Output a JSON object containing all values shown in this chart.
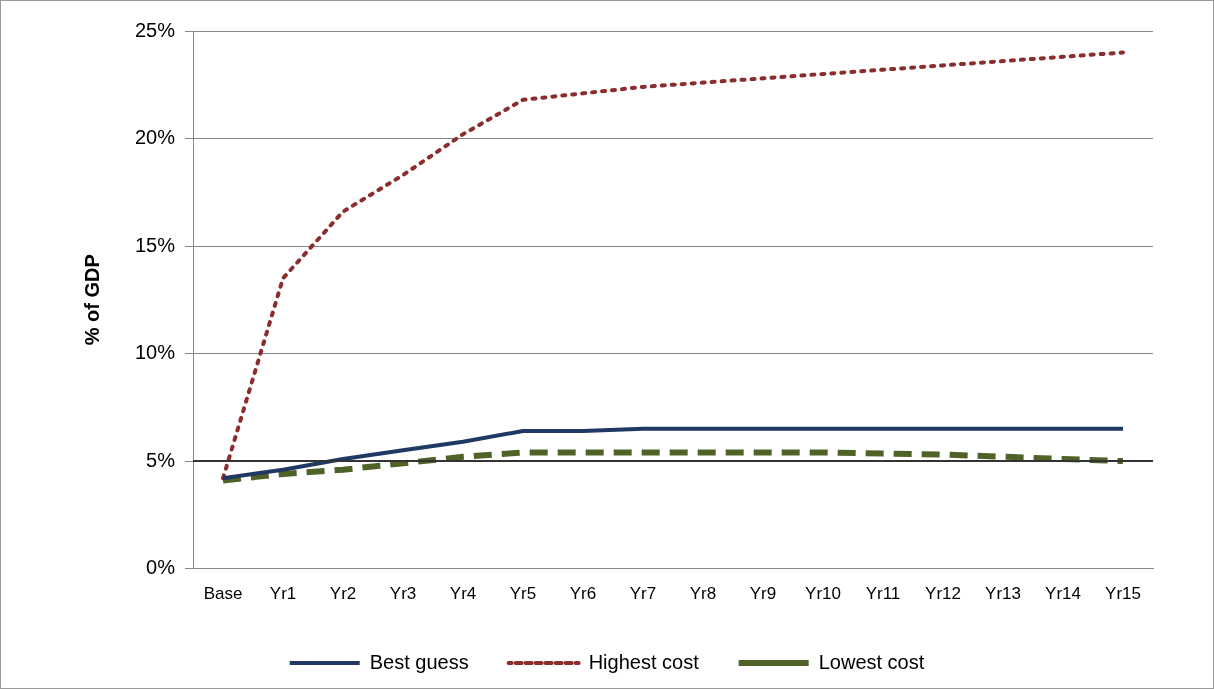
{
  "chart_data": {
    "type": "line",
    "ylabel": "% of GDP",
    "categories": [
      "Base",
      "Yr1",
      "Yr2",
      "Yr3",
      "Yr4",
      "Yr5",
      "Yr6",
      "Yr7",
      "Yr8",
      "Yr9",
      "Yr10",
      "Yr11",
      "Yr12",
      "Yr13",
      "Yr14",
      "Yr15"
    ],
    "series": [
      {
        "name": "Best guess",
        "color": "#1f3864",
        "line_style": "solid",
        "values": [
          4.2,
          4.6,
          5.1,
          5.5,
          5.9,
          6.4,
          6.4,
          6.5,
          6.5,
          6.5,
          6.5,
          6.5,
          6.5,
          6.5,
          6.5,
          6.5
        ]
      },
      {
        "name": "Highest cost",
        "color": "#8b2d2d",
        "line_style": "dotted",
        "values": [
          4.2,
          13.5,
          16.6,
          18.3,
          20.2,
          21.8,
          22.1,
          22.4,
          22.6,
          22.8,
          23.0,
          23.2,
          23.4,
          23.6,
          23.8,
          24.0
        ]
      },
      {
        "name": "Lowest cost",
        "color": "#4f6228",
        "line_style": "dashed",
        "values": [
          4.1,
          4.4,
          4.6,
          4.9,
          5.2,
          5.4,
          5.4,
          5.4,
          5.4,
          5.4,
          5.4,
          5.35,
          5.3,
          5.2,
          5.1,
          5.0
        ]
      }
    ],
    "ylim": [
      0,
      25
    ],
    "yticks": [
      {
        "value": 0,
        "label": "0%"
      },
      {
        "value": 5,
        "label": "5%"
      },
      {
        "value": 10,
        "label": "10%"
      },
      {
        "value": 15,
        "label": "15%"
      },
      {
        "value": 20,
        "label": "20%"
      },
      {
        "value": 25,
        "label": "25%"
      }
    ],
    "ref_lines": [
      {
        "axis": "y",
        "value": 5,
        "color": "#333333"
      }
    ],
    "grid": "y",
    "legend": "bottom",
    "marker": "none"
  }
}
